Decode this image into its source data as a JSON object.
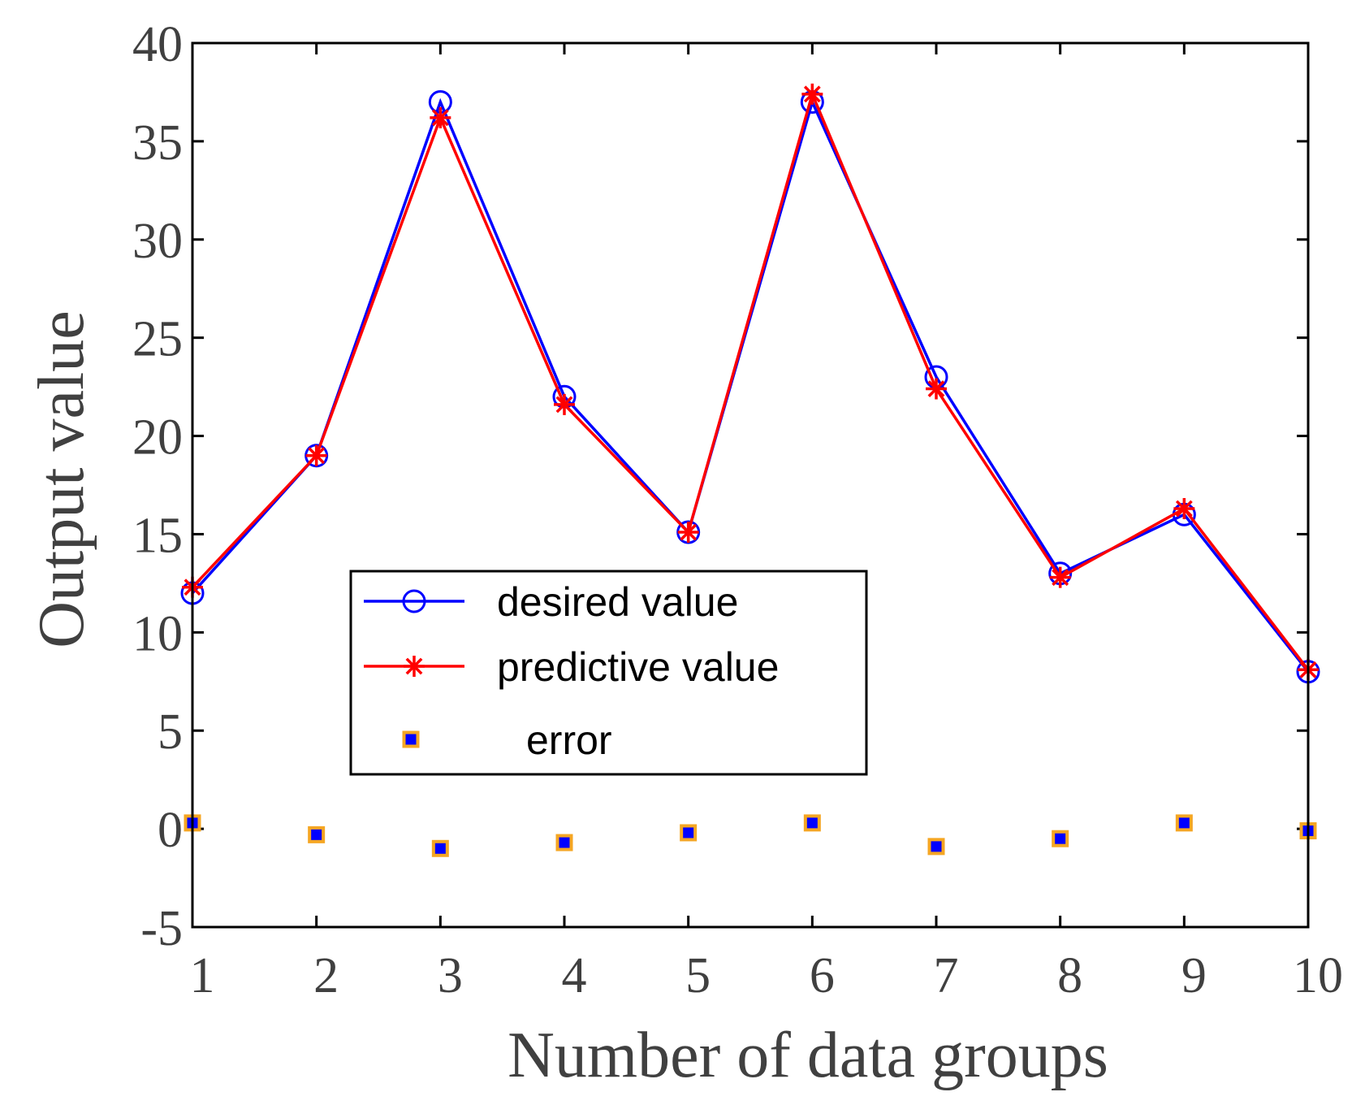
{
  "chart_data": {
    "type": "line",
    "title": "",
    "xlabel": "Number of data groups",
    "ylabel": "Output value",
    "xlim": [
      1,
      10
    ],
    "ylim": [
      -5,
      40
    ],
    "x": [
      1,
      2,
      3,
      4,
      5,
      6,
      7,
      8,
      9,
      10
    ],
    "x_ticks": [
      "1",
      "2",
      "3",
      "4",
      "5",
      "6",
      "7",
      "8",
      "9",
      "10"
    ],
    "y_ticks": [
      "-5",
      "0",
      "5",
      "10",
      "15",
      "20",
      "25",
      "30",
      "35",
      "40"
    ],
    "y_tick_values": [
      -5,
      0,
      5,
      10,
      15,
      20,
      25,
      30,
      35,
      40
    ],
    "grid": false,
    "legend_position": "center-left",
    "series": [
      {
        "name": "desired value",
        "marker": "circle",
        "color": "#0000ff",
        "values": [
          12.0,
          19.0,
          37.0,
          22.0,
          15.1,
          37.0,
          23.0,
          13.0,
          16.0,
          8.0
        ]
      },
      {
        "name": "predictive value",
        "marker": "asterisk",
        "color": "#ff0000",
        "values": [
          12.3,
          19.0,
          36.2,
          21.6,
          15.1,
          37.4,
          22.4,
          12.8,
          16.3,
          8.1
        ]
      },
      {
        "name": "error",
        "marker": "square",
        "color": "#0000ff",
        "edge_color": "#f5a623",
        "values": [
          0.3,
          -0.3,
          -1.0,
          -0.7,
          -0.2,
          0.3,
          -0.9,
          -0.5,
          0.3,
          -0.1
        ]
      }
    ]
  }
}
